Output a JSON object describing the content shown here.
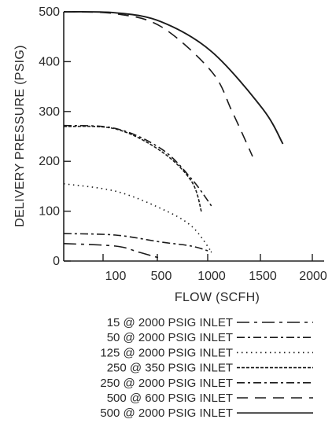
{
  "chart_data": {
    "type": "line",
    "xlabel": "FLOW (SCFH)",
    "ylabel": "DELIVERY PRESSURE (PSIG)",
    "ylim": [
      0,
      500
    ],
    "y_ticks": [
      0,
      100,
      200,
      300,
      400,
      500
    ],
    "x_tick_labels": [
      "100",
      "500",
      "1000",
      "1500",
      "2000"
    ],
    "x_scale": "nonlinear (tick labels 100, 500, 1000, 1500, 2000 evenly spaced)",
    "grid": false,
    "legend": "below",
    "series": [
      {
        "name": "15 @ 2000 PSIG INLET",
        "line_style": "long-dash-dot",
        "points": [
          [
            0,
            35
          ],
          [
            100,
            30
          ],
          [
            300,
            18
          ],
          [
            500,
            5
          ]
        ]
      },
      {
        "name": "50 @ 2000 PSIG INLET",
        "line_style": "dash-dot",
        "points": [
          [
            0,
            55
          ],
          [
            100,
            52
          ],
          [
            500,
            38
          ],
          [
            800,
            30
          ],
          [
            1000,
            18
          ]
        ]
      },
      {
        "name": "125 @ 2000 PSIG INLET",
        "line_style": "dotted",
        "points": [
          [
            0,
            155
          ],
          [
            100,
            140
          ],
          [
            500,
            105
          ],
          [
            800,
            70
          ],
          [
            1000,
            18
          ]
        ]
      },
      {
        "name": "250 @ 350 PSIG INLET",
        "line_style": "short-dash",
        "points": [
          [
            0,
            270
          ],
          [
            100,
            265
          ],
          [
            500,
            220
          ],
          [
            800,
            160
          ],
          [
            900,
            98
          ]
        ]
      },
      {
        "name": "250 @ 2000 PSIG INLET",
        "line_style": "dash-dot",
        "points": [
          [
            0,
            272
          ],
          [
            100,
            266
          ],
          [
            500,
            225
          ],
          [
            800,
            165
          ],
          [
            1000,
            110
          ]
        ]
      },
      {
        "name": "500 @ 600 PSIG INLET",
        "line_style": "long-dash",
        "points": [
          [
            0,
            500
          ],
          [
            100,
            496
          ],
          [
            500,
            470
          ],
          [
            1000,
            380
          ],
          [
            1200,
            300
          ],
          [
            1400,
            210
          ]
        ]
      },
      {
        "name": "500 @ 2000 PSIG INLET",
        "line_style": "solid",
        "points": [
          [
            0,
            500
          ],
          [
            100,
            498
          ],
          [
            500,
            480
          ],
          [
            1000,
            420
          ],
          [
            1500,
            305
          ],
          [
            1700,
            235
          ]
        ]
      }
    ]
  }
}
